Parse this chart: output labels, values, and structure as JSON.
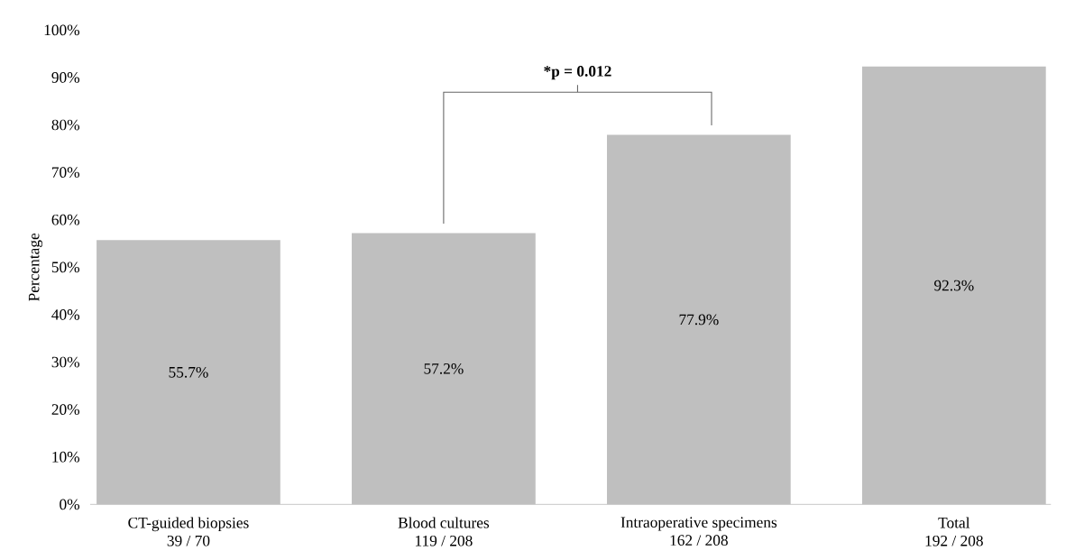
{
  "chart_data": {
    "type": "bar",
    "ylabel": "Percentage",
    "categories": [
      "CT-guided biopsies",
      "Blood cultures",
      "Intraoperative specimens",
      "Total"
    ],
    "values": [
      55.7,
      57.2,
      77.9,
      92.3
    ],
    "color": "#bfbfbf",
    "value_labels": [
      "55.7%",
      "57.2%",
      "77.9%",
      "92.3%"
    ],
    "ylim": [
      0,
      100
    ],
    "yticks": [
      {
        "value": 0,
        "label": "0%"
      },
      {
        "value": 10,
        "label": "10%"
      },
      {
        "value": 20,
        "label": "20%"
      },
      {
        "value": 30,
        "label": "30%"
      },
      {
        "value": 40,
        "label": "40%"
      },
      {
        "value": 50,
        "label": "50%"
      },
      {
        "value": 60,
        "label": "60%"
      },
      {
        "value": 70,
        "label": "70%"
      },
      {
        "value": 80,
        "label": "80%"
      },
      {
        "value": 90,
        "label": "90%"
      },
      {
        "value": 100,
        "label": "100%"
      }
    ],
    "annotations": [
      "39 / 70",
      "119 / 208",
      "162 / 208",
      "192 / 208",
      "*p = 0.012"
    ]
  }
}
